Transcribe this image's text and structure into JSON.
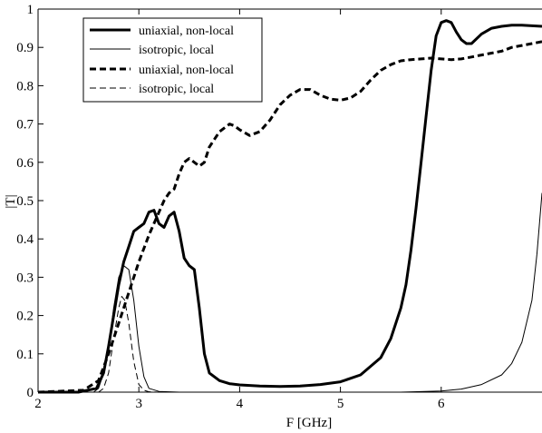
{
  "chart_data": {
    "type": "line",
    "xlabel": "F [GHz]",
    "ylabel": "|T|",
    "xlim": [
      2,
      7
    ],
    "ylim": [
      0,
      1
    ],
    "xticks": [
      2,
      3,
      4,
      5,
      6
    ],
    "yticks": [
      0,
      0.1,
      0.2,
      0.3,
      0.4,
      0.5,
      0.6,
      0.7,
      0.8,
      0.9,
      1
    ],
    "grid": false,
    "legend_position": "top-left",
    "series": [
      {
        "name": "uniaxial, non-local",
        "line_style": "solid-thick",
        "x": [
          2.0,
          2.4,
          2.58,
          2.65,
          2.7,
          2.75,
          2.8,
          2.85,
          2.9,
          2.95,
          3.0,
          3.05,
          3.1,
          3.15,
          3.2,
          3.25,
          3.3,
          3.35,
          3.4,
          3.45,
          3.5,
          3.55,
          3.6,
          3.65,
          3.7,
          3.8,
          3.9,
          4.0,
          4.2,
          4.4,
          4.6,
          4.8,
          5.0,
          5.2,
          5.4,
          5.5,
          5.6,
          5.65,
          5.7,
          5.75,
          5.8,
          5.85,
          5.9,
          5.95,
          6.0,
          6.05,
          6.1,
          6.15,
          6.2,
          6.25,
          6.3,
          6.4,
          6.5,
          6.6,
          6.7,
          6.8,
          7.0
        ],
        "y": [
          0.0,
          0.0,
          0.01,
          0.05,
          0.12,
          0.2,
          0.28,
          0.34,
          0.38,
          0.42,
          0.43,
          0.44,
          0.47,
          0.475,
          0.44,
          0.43,
          0.46,
          0.47,
          0.42,
          0.35,
          0.33,
          0.32,
          0.22,
          0.1,
          0.05,
          0.03,
          0.022,
          0.019,
          0.016,
          0.015,
          0.016,
          0.02,
          0.027,
          0.045,
          0.09,
          0.14,
          0.22,
          0.28,
          0.37,
          0.48,
          0.6,
          0.72,
          0.84,
          0.93,
          0.965,
          0.97,
          0.965,
          0.94,
          0.92,
          0.91,
          0.91,
          0.935,
          0.95,
          0.955,
          0.958,
          0.958,
          0.955
        ]
      },
      {
        "name": "isotropic, local",
        "line_style": "solid-thin",
        "x": [
          2.0,
          2.55,
          2.6,
          2.65,
          2.7,
          2.75,
          2.8,
          2.85,
          2.9,
          2.95,
          3.0,
          3.05,
          3.1,
          3.2,
          3.4,
          4.0,
          5.0,
          5.6,
          6.0,
          6.2,
          6.4,
          6.6,
          6.7,
          6.8,
          6.9,
          6.95,
          7.0
        ],
        "y": [
          0.0,
          0.0,
          0.01,
          0.05,
          0.12,
          0.22,
          0.3,
          0.33,
          0.32,
          0.24,
          0.12,
          0.04,
          0.01,
          0.002,
          0.0,
          0.0,
          0.0,
          0.0,
          0.003,
          0.008,
          0.02,
          0.045,
          0.075,
          0.13,
          0.24,
          0.36,
          0.52
        ]
      },
      {
        "name": "uniaxial, non-local",
        "line_style": "dashed-thick",
        "x": [
          2.0,
          2.45,
          2.6,
          2.7,
          2.8,
          2.9,
          3.0,
          3.1,
          3.2,
          3.25,
          3.3,
          3.35,
          3.4,
          3.45,
          3.5,
          3.55,
          3.6,
          3.65,
          3.7,
          3.8,
          3.9,
          3.95,
          4.0,
          4.1,
          4.2,
          4.3,
          4.4,
          4.5,
          4.6,
          4.7,
          4.8,
          4.9,
          5.0,
          5.1,
          5.2,
          5.3,
          5.4,
          5.5,
          5.6,
          5.7,
          5.8,
          5.9,
          6.0,
          6.1,
          6.2,
          6.3,
          6.4,
          6.5,
          6.6,
          6.7,
          6.8,
          6.9,
          7.0
        ],
        "y": [
          0.0,
          0.005,
          0.03,
          0.1,
          0.18,
          0.26,
          0.34,
          0.41,
          0.47,
          0.5,
          0.52,
          0.53,
          0.57,
          0.6,
          0.61,
          0.6,
          0.59,
          0.6,
          0.64,
          0.68,
          0.7,
          0.695,
          0.685,
          0.67,
          0.68,
          0.71,
          0.75,
          0.775,
          0.79,
          0.79,
          0.775,
          0.765,
          0.762,
          0.768,
          0.785,
          0.815,
          0.84,
          0.855,
          0.865,
          0.868,
          0.87,
          0.872,
          0.87,
          0.868,
          0.87,
          0.875,
          0.88,
          0.885,
          0.89,
          0.9,
          0.905,
          0.91,
          0.915
        ]
      },
      {
        "name": "isotropic, local",
        "line_style": "dashed-thin",
        "x": [
          2.0,
          2.6,
          2.65,
          2.7,
          2.75,
          2.8,
          2.83,
          2.86,
          2.9,
          2.95,
          3.0,
          3.05,
          3.1,
          3.2
        ],
        "y": [
          0.0,
          0.0,
          0.01,
          0.05,
          0.14,
          0.22,
          0.25,
          0.24,
          0.18,
          0.08,
          0.02,
          0.005,
          0.001,
          0.0
        ]
      }
    ]
  }
}
